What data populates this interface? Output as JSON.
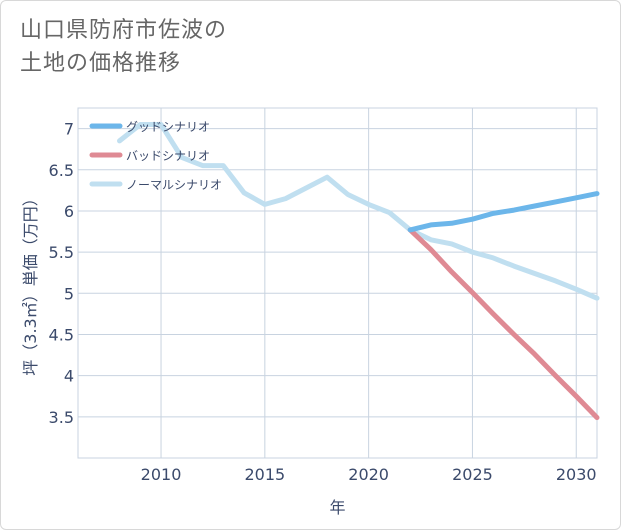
{
  "title_lines": [
    "山口県防府市佐波の",
    "土地の価格推移"
  ],
  "chart_data": {
    "type": "line",
    "title": "山口県防府市佐波の土地の価格推移",
    "xlabel": "年",
    "ylabel": "坪（3.3㎡）単価（万円）",
    "xlim": [
      2006,
      2031
    ],
    "ylim": [
      3.0,
      7.25
    ],
    "x_ticks": [
      2010,
      2015,
      2020,
      2025,
      2030
    ],
    "y_ticks": [
      3.5,
      4,
      4.5,
      5,
      5.5,
      6,
      6.5,
      7
    ],
    "grid": true,
    "legend_position": "top-left",
    "series": [
      {
        "name": "グッドシナリオ",
        "color": "#6cb6ea",
        "x": [
          2022,
          2023,
          2024,
          2025,
          2026,
          2027,
          2028,
          2029,
          2030,
          2031
        ],
        "y": [
          5.77,
          5.83,
          5.85,
          5.9,
          5.97,
          6.01,
          6.06,
          6.11,
          6.16,
          6.21
        ]
      },
      {
        "name": "バッドシナリオ",
        "color": "#df8a94",
        "x": [
          2022,
          2023,
          2024,
          2025,
          2026,
          2027,
          2028,
          2029,
          2030,
          2031
        ],
        "y": [
          5.77,
          5.53,
          5.26,
          5.01,
          4.75,
          4.5,
          4.26,
          4.0,
          3.75,
          3.49
        ]
      },
      {
        "name": "ノーマルシナリオ",
        "color": "#c0dff0",
        "x": [
          2008,
          2009,
          2010,
          2011,
          2012,
          2013,
          2014,
          2015,
          2016,
          2017,
          2018,
          2019,
          2020,
          2021,
          2022,
          2023,
          2024,
          2025,
          2026,
          2027,
          2028,
          2029,
          2030,
          2031
        ],
        "y": [
          6.85,
          7.05,
          7.05,
          6.65,
          6.55,
          6.55,
          6.22,
          6.08,
          6.15,
          6.28,
          6.41,
          6.2,
          6.08,
          5.98,
          5.77,
          5.65,
          5.6,
          5.5,
          5.43,
          5.33,
          5.24,
          5.15,
          5.05,
          4.94
        ]
      }
    ]
  }
}
